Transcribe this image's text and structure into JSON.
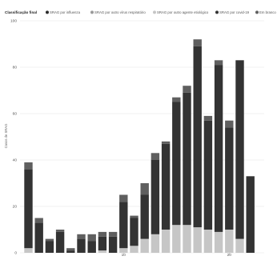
{
  "chart_data": {
    "type": "bar",
    "stacked": true,
    "legend": {
      "title": "Classificação final",
      "placement": "top-left",
      "entries": [
        {
          "name": "SRAG por influenza",
          "color": "#2b2b2b"
        },
        {
          "name": "SRAG por outro vírus respiratório",
          "color": "#9a9a9a"
        },
        {
          "name": "SRAG por outro agente etiológico",
          "color": "#c6c6c6"
        },
        {
          "name": "SRAG por covid-19",
          "color": "#333333"
        },
        {
          "name": "Em branco",
          "color": "#5f5f5f"
        }
      ]
    },
    "ylabel": "Casos de SRAG",
    "ylim": [
      0,
      100
    ],
    "yticks": [
      "0",
      "20",
      "40",
      "60",
      "80",
      "100"
    ],
    "xticks": [
      {
        "value": 10,
        "label": "10"
      },
      {
        "value": 20,
        "label": "20"
      }
    ],
    "grid": true,
    "x": [
      1,
      2,
      3,
      4,
      5,
      6,
      7,
      8,
      9,
      10,
      11,
      12,
      13,
      14,
      15,
      16,
      17,
      18,
      19,
      20,
      21,
      22
    ],
    "series": [
      {
        "name": "SRAG por influenza",
        "values": [
          0,
          0,
          0,
          0,
          0,
          0,
          0,
          0,
          0,
          0,
          0,
          0,
          0,
          0,
          0,
          0,
          0,
          0,
          0,
          0,
          0,
          0
        ]
      },
      {
        "name": "SRAG por outro vírus respiratório",
        "values": [
          0,
          0,
          0,
          0,
          0,
          0,
          0,
          0,
          0,
          0,
          0,
          0,
          0,
          0,
          0,
          0,
          0,
          0,
          0,
          0,
          0,
          0
        ]
      },
      {
        "name": "SRAG por outro agente etiológico",
        "values": [
          2,
          0,
          0,
          0,
          0,
          0,
          0,
          1,
          0,
          2,
          3,
          6,
          8,
          10,
          12,
          12,
          11,
          10,
          9,
          10,
          6,
          0
        ]
      },
      {
        "name": "SRAG por covid-19",
        "values": [
          34,
          13,
          5,
          9,
          1,
          6,
          5,
          6,
          7,
          20,
          12,
          19,
          32,
          37,
          53,
          57,
          78,
          47,
          72,
          44,
          77,
          33
        ]
      },
      {
        "name": "Em branco",
        "values": [
          3,
          2,
          1,
          1,
          1,
          2,
          3,
          2,
          2,
          3,
          1,
          5,
          3,
          1,
          2,
          3,
          3,
          2,
          2,
          3,
          0,
          0
        ]
      }
    ]
  }
}
